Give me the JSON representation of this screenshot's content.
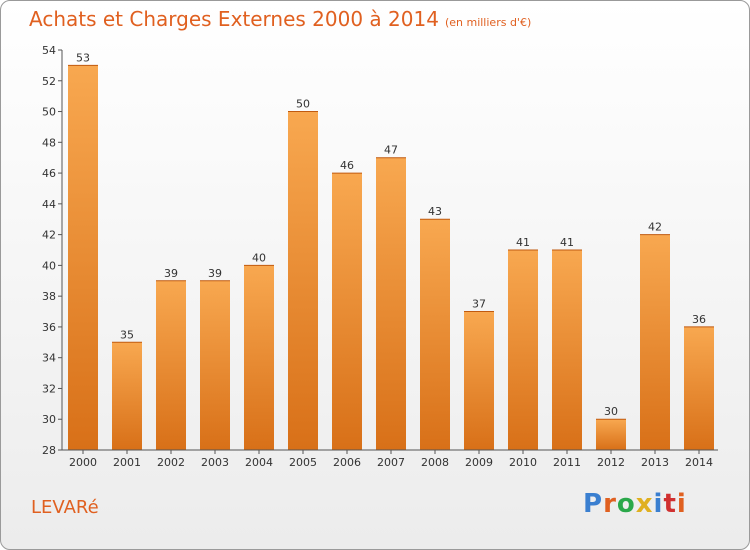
{
  "title": "Achats et Charges Externes 2000 à 2014",
  "unit": "(en milliers d'€)",
  "commune": "LEVARé",
  "logo": "Proxiti",
  "chart_data": {
    "type": "bar",
    "title": "Achats et Charges Externes 2000 à 2014",
    "categories": [
      "2000",
      "2001",
      "2002",
      "2003",
      "2004",
      "2005",
      "2006",
      "2007",
      "2008",
      "2009",
      "2010",
      "2011",
      "2012",
      "2013",
      "2014"
    ],
    "values": [
      53,
      35,
      39,
      39,
      40,
      50,
      46,
      47,
      43,
      37,
      41,
      41,
      30,
      42,
      36
    ],
    "ylim": [
      28,
      54
    ],
    "yticks": [
      28,
      30,
      32,
      34,
      36,
      38,
      40,
      42,
      44,
      46,
      48,
      50,
      52,
      54
    ],
    "grid": false,
    "colors": {
      "bar_light": "#f8a850",
      "bar_dark": "#d87018",
      "text": "#333333"
    }
  }
}
